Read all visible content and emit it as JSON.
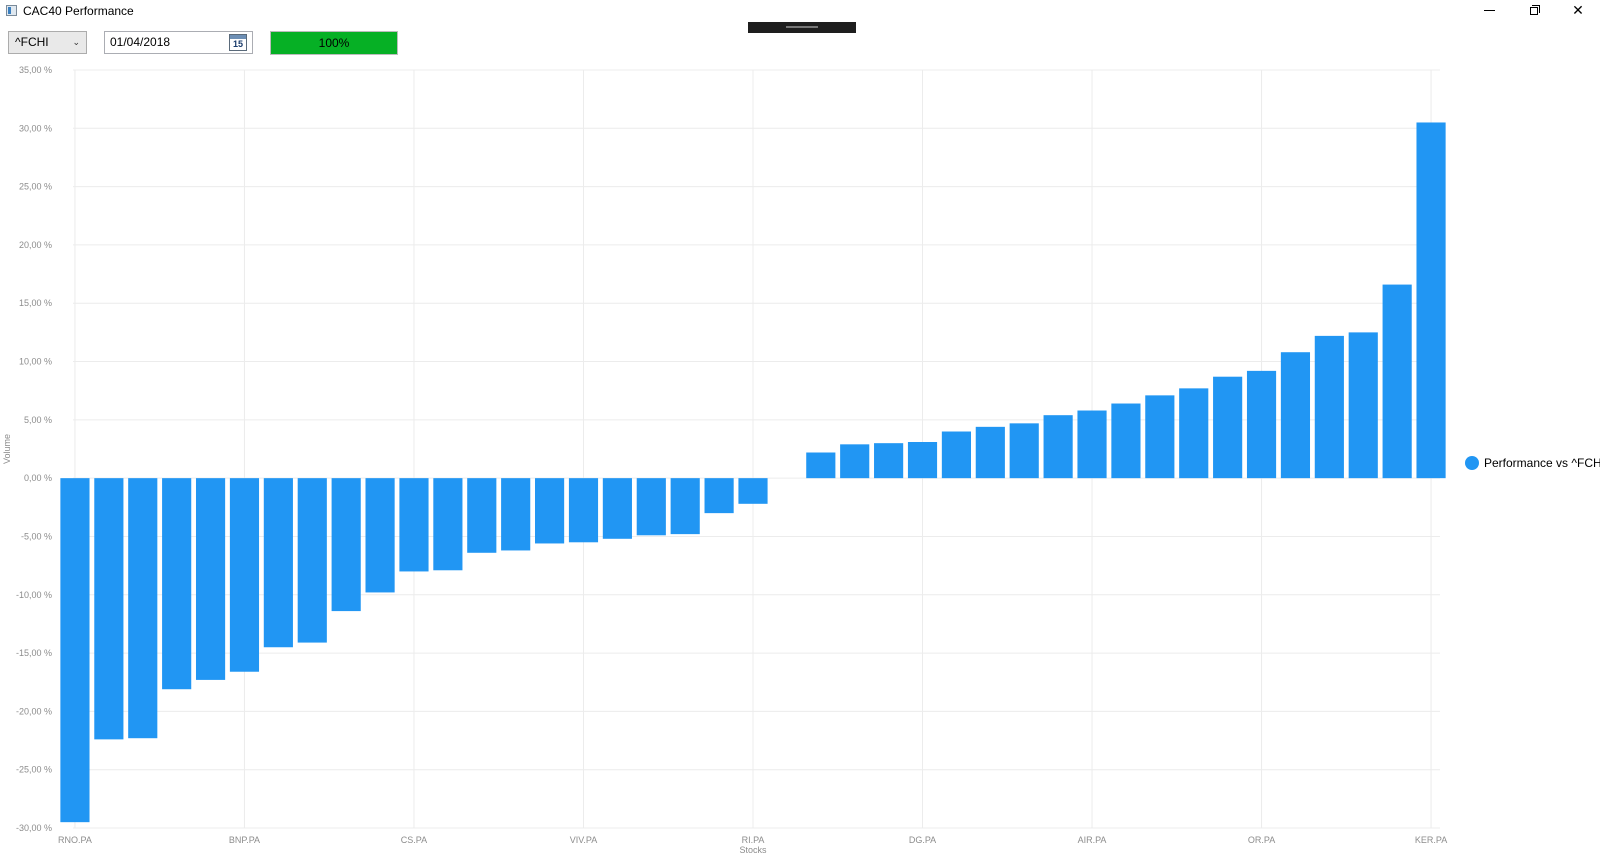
{
  "window": {
    "title": "CAC40 Performance"
  },
  "controls": {
    "symbol": "^FCHI",
    "date": "01/04/2018",
    "calendar_day": "15",
    "progress_label": "100%",
    "progress_value": 1.0,
    "progress_color": "#06b025"
  },
  "chart_data": {
    "type": "bar",
    "title": "",
    "xlabel": "Stocks",
    "ylabel": "Volume",
    "ylim": [
      -30,
      35
    ],
    "ytick_step": 5,
    "ytick_labels": [
      "35,00 %",
      "30,00 %",
      "25,00 %",
      "20,00 %",
      "15,00 %",
      "10,00 %",
      "5,00 %",
      "0,00 %",
      "-5,00 %",
      "-10,00 %",
      "-15,00 %",
      "-20,00 %",
      "-25,00 %",
      "-30,00 %"
    ],
    "categories": [
      "RNO.PA",
      "",
      "",
      "",
      "",
      "BNP.PA",
      "",
      "",
      "",
      "",
      "CS.PA",
      "",
      "",
      "",
      "",
      "VIV.PA",
      "",
      "",
      "",
      "",
      "RI.PA",
      "",
      "",
      "",
      "",
      "DG.PA",
      "",
      "",
      "",
      "",
      "AIR.PA",
      "",
      "",
      "",
      "",
      "OR.PA",
      "",
      "",
      "",
      "",
      "KER.PA"
    ],
    "series": [
      {
        "name": "Performance vs ^FCHI",
        "color": "#2196f3",
        "values": [
          -29.5,
          -22.4,
          -22.3,
          -18.1,
          -17.3,
          -16.6,
          -14.5,
          -14.1,
          -11.4,
          -9.8,
          -8.0,
          -7.9,
          -6.4,
          -6.2,
          -5.6,
          -5.5,
          -5.2,
          -4.9,
          -4.8,
          -3.0,
          -2.2,
          null,
          2.2,
          2.9,
          3.0,
          3.1,
          4.0,
          4.4,
          4.7,
          5.4,
          5.8,
          6.4,
          7.1,
          7.7,
          8.7,
          9.2,
          10.8,
          12.2,
          12.5,
          16.6,
          30.5
        ]
      }
    ],
    "grid": true,
    "legend": "right"
  }
}
